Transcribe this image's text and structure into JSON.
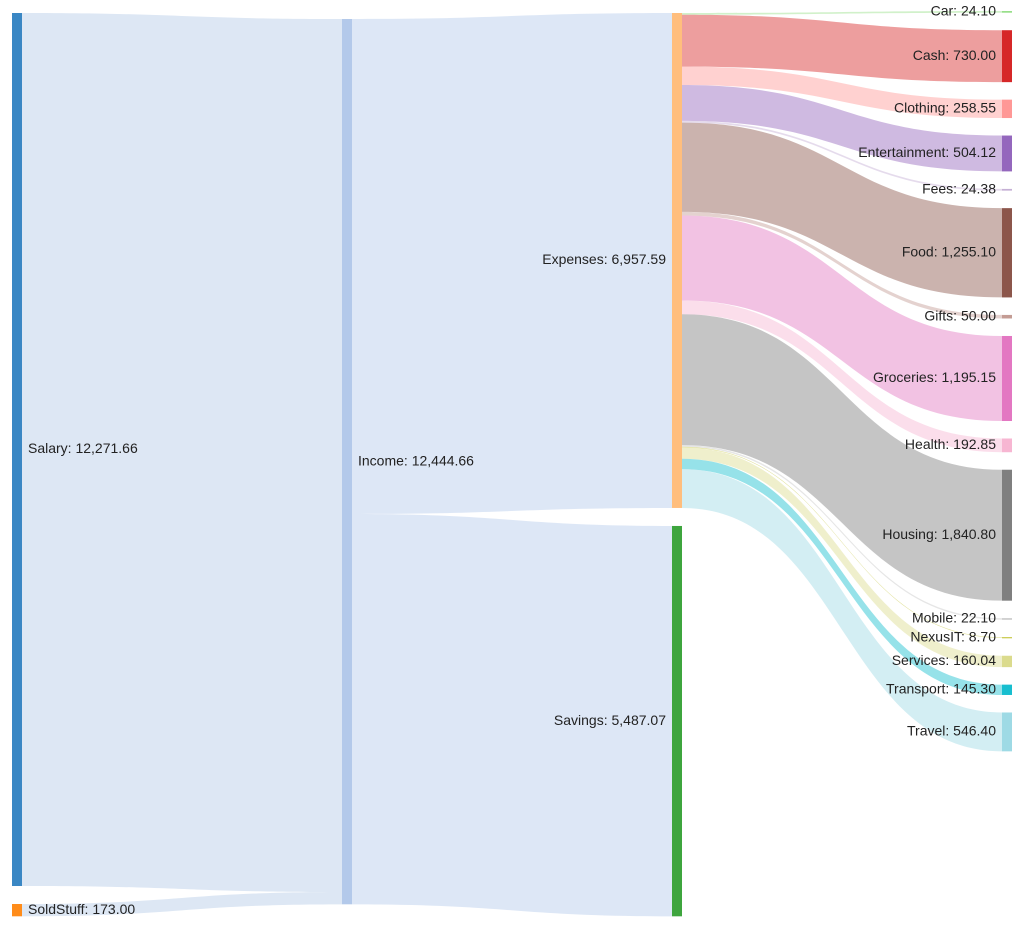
{
  "chart_data": {
    "type": "sankey",
    "nodes": [
      {
        "id": "salary",
        "label": "Salary: 12,271.66",
        "value": 12271.66,
        "color": "#3a87c4",
        "column": 0
      },
      {
        "id": "soldstuff",
        "label": "SoldStuff: 173.00",
        "value": 173.0,
        "color": "#ff8c1a",
        "column": 0
      },
      {
        "id": "income",
        "label": "Income: 12,444.66",
        "value": 12444.66,
        "color": "#b3c9ea",
        "column": 1
      },
      {
        "id": "expenses",
        "label": "Expenses: 6,957.59",
        "value": 6957.59,
        "color": "#ffbe7d",
        "column": 2
      },
      {
        "id": "savings",
        "label": "Savings: 5,487.07",
        "value": 5487.07,
        "color": "#3ea53e",
        "column": 2
      },
      {
        "id": "car",
        "label": "Car: 24.10",
        "value": 24.1,
        "color": "#98df8a",
        "column": 3
      },
      {
        "id": "cash",
        "label": "Cash: 730.00",
        "value": 730.0,
        "color": "#d62728",
        "column": 3
      },
      {
        "id": "clothing",
        "label": "Clothing: 258.55",
        "value": 258.55,
        "color": "#ff9896",
        "column": 3
      },
      {
        "id": "entertainment",
        "label": "Entertainment: 504.12",
        "value": 504.12,
        "color": "#9467bd",
        "column": 3
      },
      {
        "id": "fees",
        "label": "Fees: 24.38",
        "value": 24.38,
        "color": "#c5b0d5",
        "column": 3
      },
      {
        "id": "food",
        "label": "Food: 1,255.10",
        "value": 1255.1,
        "color": "#8c564b",
        "column": 3
      },
      {
        "id": "gifts",
        "label": "Gifts: 50.00",
        "value": 50.0,
        "color": "#c49c94",
        "column": 3
      },
      {
        "id": "groceries",
        "label": "Groceries: 1,195.15",
        "value": 1195.15,
        "color": "#e377c2",
        "column": 3
      },
      {
        "id": "health",
        "label": "Health: 192.85",
        "value": 192.85,
        "color": "#f7b6d2",
        "column": 3
      },
      {
        "id": "housing",
        "label": "Housing: 1,840.80",
        "value": 1840.8,
        "color": "#7f7f7f",
        "column": 3
      },
      {
        "id": "mobile",
        "label": "Mobile: 22.10",
        "value": 22.1,
        "color": "#c7c7c7",
        "column": 3
      },
      {
        "id": "nexusit",
        "label": "NexusIT: 8.70",
        "value": 8.7,
        "color": "#bcbd22",
        "column": 3
      },
      {
        "id": "services",
        "label": "Services: 160.04",
        "value": 160.04,
        "color": "#dbdb8d",
        "column": 3
      },
      {
        "id": "transport",
        "label": "Transport: 145.30",
        "value": 145.3,
        "color": "#17becf",
        "column": 3
      },
      {
        "id": "travel",
        "label": "Travel: 546.40",
        "value": 546.4,
        "color": "#9edae5",
        "column": 3
      }
    ],
    "links": [
      {
        "source": "salary",
        "target": "income",
        "value": 12271.66
      },
      {
        "source": "soldstuff",
        "target": "income",
        "value": 173.0
      },
      {
        "source": "income",
        "target": "expenses",
        "value": 6957.59
      },
      {
        "source": "income",
        "target": "savings",
        "value": 5487.07
      },
      {
        "source": "expenses",
        "target": "car",
        "value": 24.1
      },
      {
        "source": "expenses",
        "target": "cash",
        "value": 730.0
      },
      {
        "source": "expenses",
        "target": "clothing",
        "value": 258.55
      },
      {
        "source": "expenses",
        "target": "entertainment",
        "value": 504.12
      },
      {
        "source": "expenses",
        "target": "fees",
        "value": 24.38
      },
      {
        "source": "expenses",
        "target": "food",
        "value": 1255.1
      },
      {
        "source": "expenses",
        "target": "gifts",
        "value": 50.0
      },
      {
        "source": "expenses",
        "target": "groceries",
        "value": 1195.15
      },
      {
        "source": "expenses",
        "target": "health",
        "value": 192.85
      },
      {
        "source": "expenses",
        "target": "housing",
        "value": 1840.8
      },
      {
        "source": "expenses",
        "target": "mobile",
        "value": 22.1
      },
      {
        "source": "expenses",
        "target": "nexusit",
        "value": 8.7
      },
      {
        "source": "expenses",
        "target": "services",
        "value": 160.04
      },
      {
        "source": "expenses",
        "target": "transport",
        "value": 145.3
      },
      {
        "source": "expenses",
        "target": "travel",
        "value": 546.4
      }
    ]
  }
}
